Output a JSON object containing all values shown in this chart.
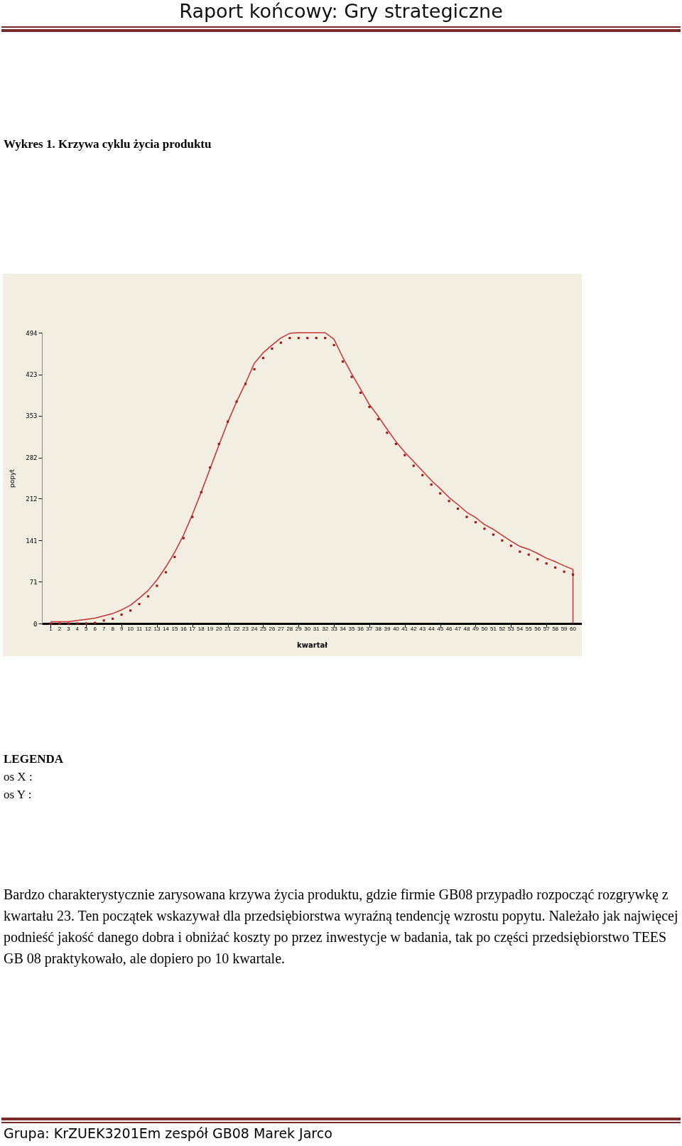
{
  "chart_data": {
    "type": "line",
    "title": "Wykres 1. Krzywa cyklu życia produktu",
    "xlabel": "kwartał",
    "ylabel": "popyt",
    "annotations": [
      "Raport końcowy: Gry strategiczne",
      "LEGENDA",
      "os X :",
      "os Y :",
      "Bardzo charakterystycznie zarysowana krzywa życia produktu, gdzie firmie GB08 przypadło rozpocząć rozgrywkę z kwartału 23. Ten początek wskazywał dla przedsiębiorstwa wyraźną tendencję wzrostu popytu. Należało jak najwięcej podnieść jakość danego dobra i obniżać koszty po przez inwestycje w badania, tak po części przedsiębiorstwo TEES GB 08 praktykowało, ale dopiero po 10 kwartale.",
      "Grupa: KrZUEK3201Em zespół GB08 Marek Jarco"
    ],
    "x": [
      1,
      2,
      3,
      4,
      5,
      6,
      7,
      8,
      9,
      10,
      11,
      12,
      13,
      14,
      15,
      16,
      17,
      18,
      19,
      20,
      21,
      22,
      23,
      24,
      25,
      26,
      27,
      28,
      29,
      30,
      31,
      32,
      33,
      34,
      35,
      36,
      37,
      38,
      39,
      40,
      41,
      42,
      43,
      44,
      45,
      46,
      47,
      48,
      49,
      50,
      51,
      52,
      53,
      54,
      55,
      56,
      57,
      58,
      59,
      60
    ],
    "xlim": [
      0,
      61
    ],
    "xticks": [
      1,
      2,
      3,
      4,
      5,
      6,
      7,
      8,
      9,
      10,
      11,
      12,
      13,
      14,
      15,
      16,
      17,
      18,
      19,
      20,
      21,
      22,
      23,
      24,
      25,
      26,
      27,
      28,
      29,
      30,
      31,
      32,
      33,
      34,
      35,
      36,
      37,
      38,
      39,
      40,
      41,
      42,
      43,
      44,
      45,
      46,
      47,
      48,
      49,
      50,
      51,
      52,
      53,
      54,
      55,
      56,
      57,
      58,
      59,
      60
    ],
    "ylim": [
      0,
      494
    ],
    "yticks": [
      0,
      71,
      141,
      212,
      282,
      353,
      423,
      494
    ],
    "series": [
      {
        "type": "line",
        "color": "#c83232",
        "marker": "none",
        "x": [
          1,
          2,
          3,
          4,
          5,
          6,
          7,
          8,
          9,
          10,
          11,
          12,
          13,
          14,
          15,
          16,
          17,
          18,
          19,
          20,
          21,
          22,
          23,
          24,
          25,
          26,
          27,
          28,
          29,
          30,
          31,
          32,
          33,
          34,
          35,
          36,
          37,
          38,
          39,
          40,
          41,
          42,
          43,
          44,
          45,
          46,
          47,
          48,
          49,
          50,
          51,
          52,
          53,
          54,
          55,
          56,
          57,
          58,
          59,
          60,
          60
        ],
        "values": [
          3,
          3,
          3,
          5,
          7,
          9,
          13,
          17,
          23,
          31,
          43,
          56,
          74,
          96,
          121,
          150,
          185,
          223,
          263,
          303,
          342,
          377,
          408,
          442,
          460,
          473,
          485,
          493,
          494,
          494,
          494,
          494,
          483,
          452,
          424,
          398,
          372,
          352,
          330,
          309,
          291,
          275,
          259,
          243,
          229,
          214,
          202,
          189,
          180,
          168,
          160,
          150,
          140,
          131,
          126,
          119,
          111,
          105,
          98,
          92,
          0
        ]
      },
      {
        "type": "scatter",
        "color": "#a01818",
        "marker": "square",
        "values": [
          0,
          0,
          0,
          0,
          0,
          1,
          5,
          8,
          15,
          22,
          33,
          46,
          64,
          87,
          113,
          145,
          181,
          223,
          265,
          305,
          343,
          377,
          407,
          432,
          451,
          467,
          477,
          485,
          485,
          485,
          485,
          485,
          473,
          445,
          419,
          392,
          368,
          347,
          324,
          305,
          286,
          268,
          252,
          236,
          221,
          208,
          195,
          181,
          172,
          161,
          151,
          141,
          132,
          122,
          117,
          109,
          102,
          95,
          88,
          83
        ]
      }
    ]
  }
}
